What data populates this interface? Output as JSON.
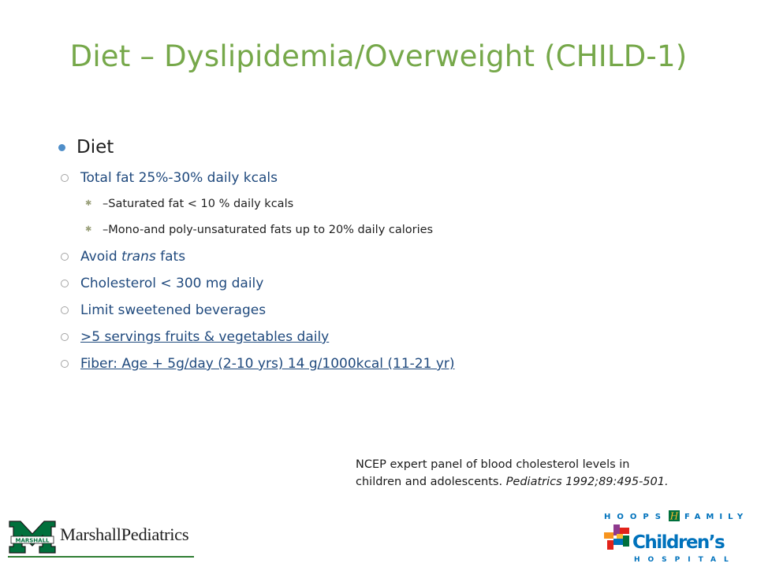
{
  "slide": {
    "title": "Diet – Dyslipidemia/Overweight (CHILD-1)",
    "main_bullet": "Diet",
    "sub_fat": "Total fat 25%-30% daily kcals",
    "sub_fat_items": [
      "–Saturated fat < 10 % daily kcals",
      "–Mono-and poly-unsaturated fats up to 20% daily calories"
    ],
    "avoid_prefix": "Avoid ",
    "avoid_trans": "trans",
    "avoid_suffix": " fats",
    "cholesterol": "Cholesterol < 300 mg daily",
    "beverages": "Limit sweetened beverages",
    "fruits": ">5 servings fruits & vegetables daily",
    "fiber": "Fiber: Age + 5g/day (2-10 yrs) 14 g/1000kcal (11-21 yr)"
  },
  "reference": {
    "line1": "NCEP expert panel of blood cholesterol levels in",
    "line2_prefix": "children and adolescents. ",
    "line2_italic": "Pediatrics 1992;89:495-501."
  },
  "logos": {
    "marshall_text": "MarshallPediatrics",
    "marshall_m_text": "MARSHALL",
    "hoops_top": "HOOPS",
    "hoops_h": "H",
    "hoops_family": "FAMILY",
    "childrens": "Children’s",
    "hospital": "HOSPITAL",
    "colors": {
      "green": "#00703c",
      "blue": "#0072bc",
      "red": "#e2231a",
      "orange": "#f7941d",
      "purple": "#8e3a8e",
      "yellow": "#fdbb30"
    }
  }
}
